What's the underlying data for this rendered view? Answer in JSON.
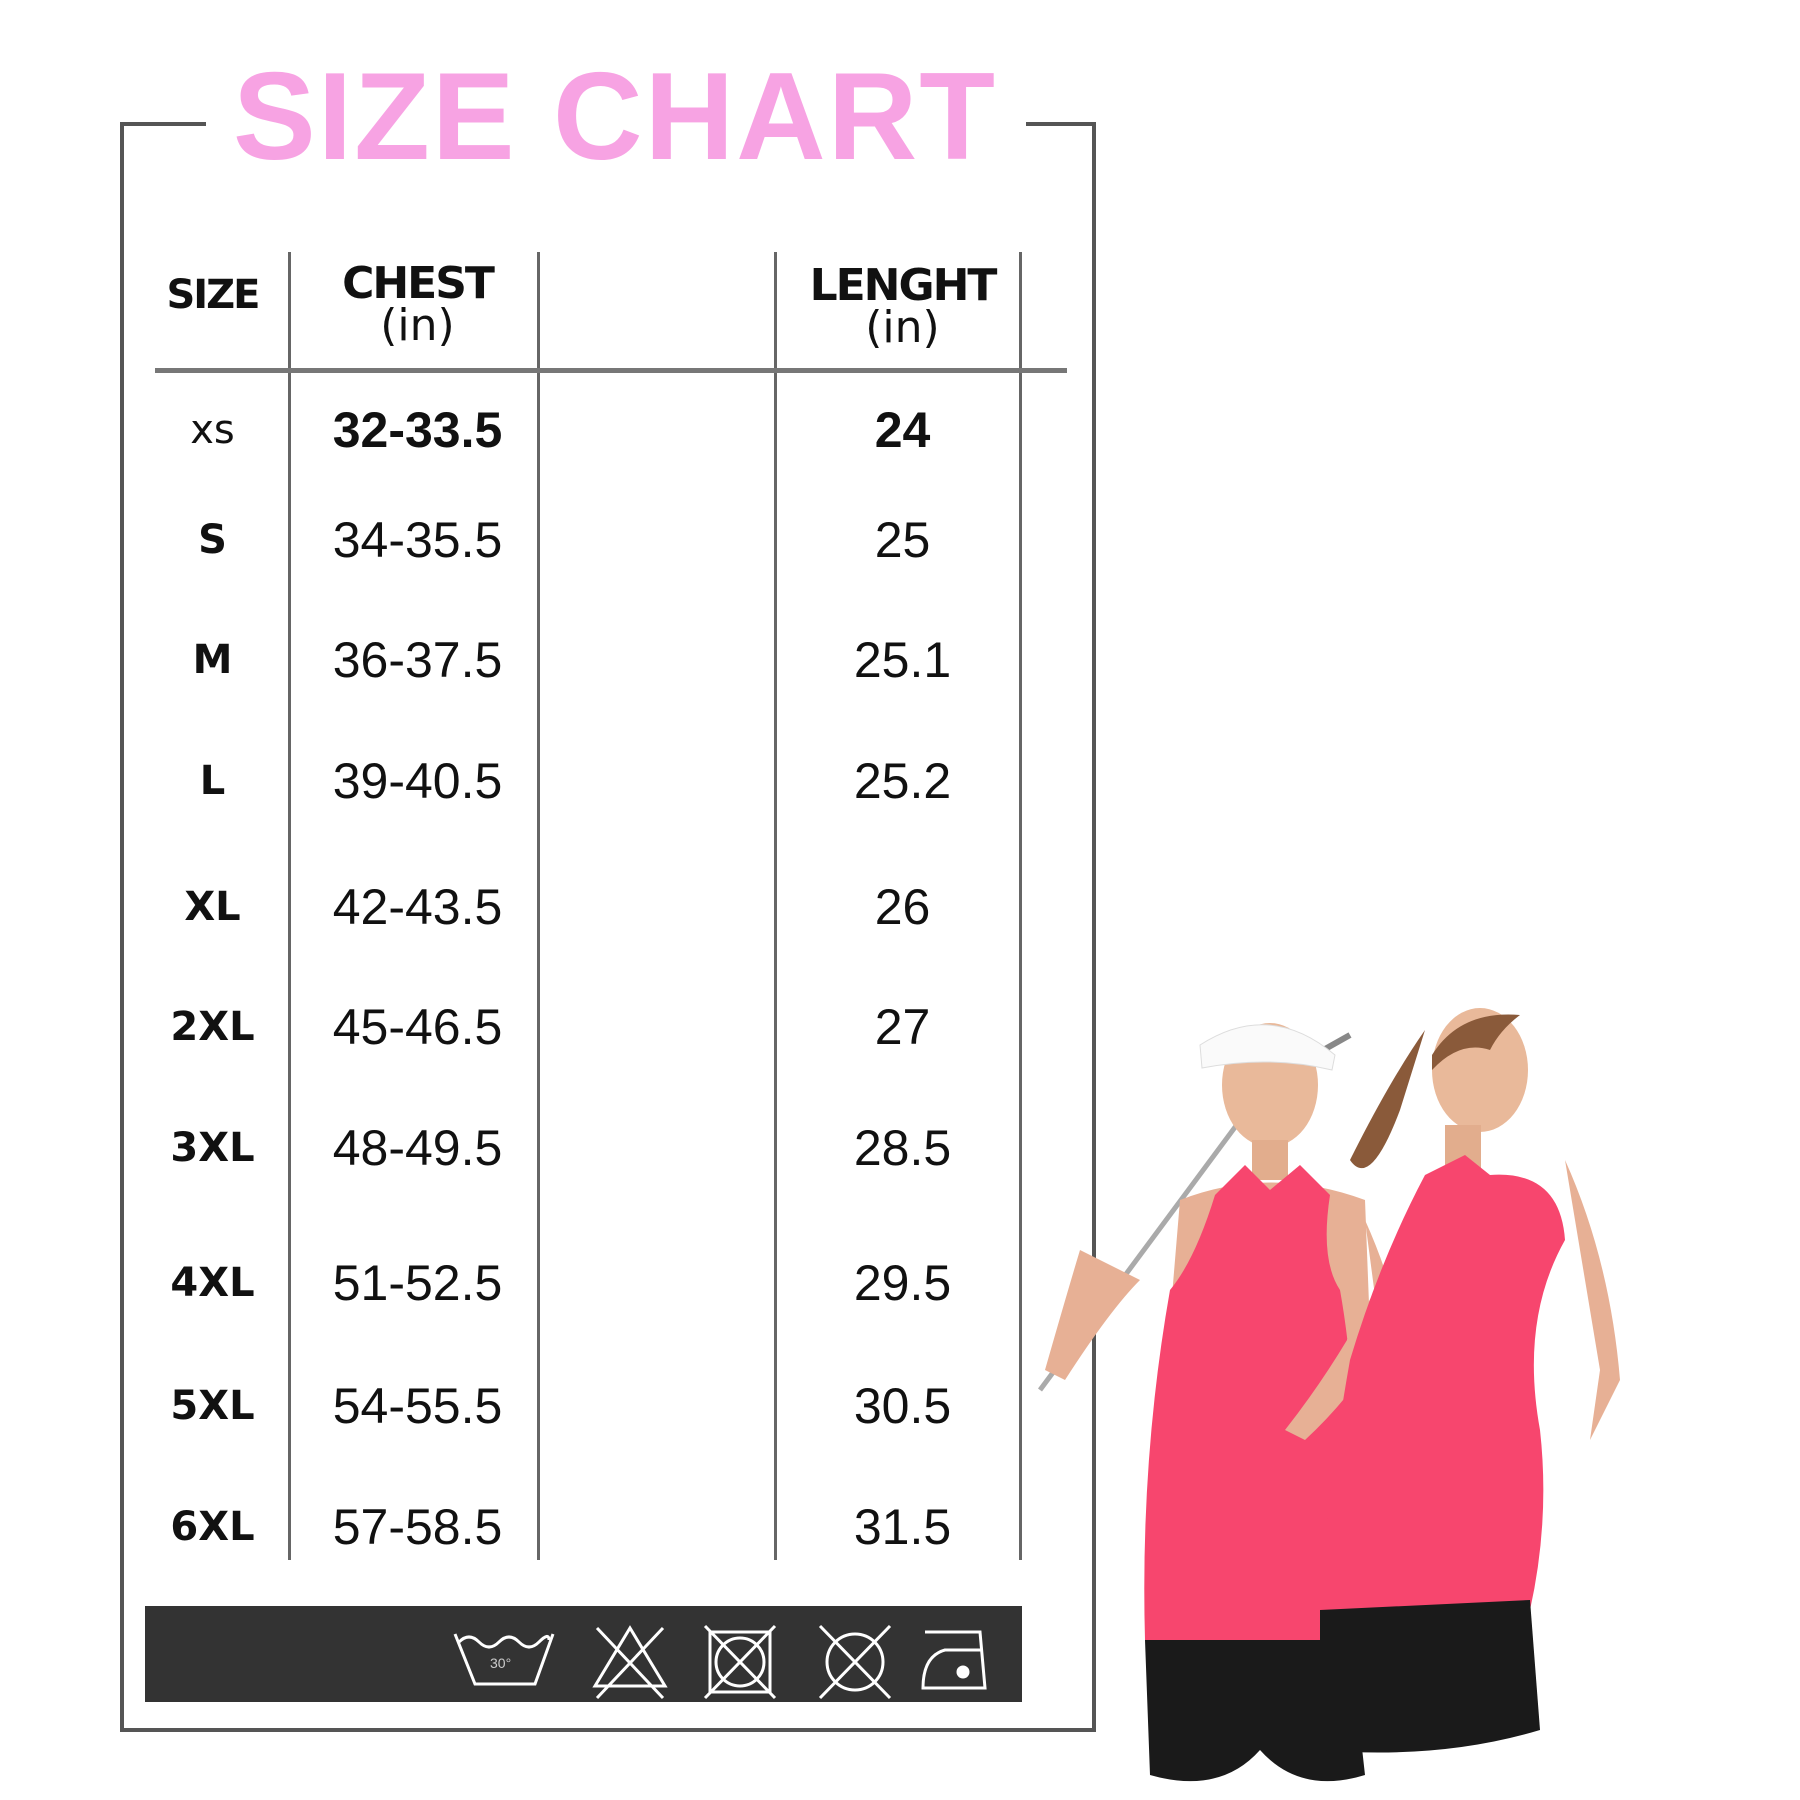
{
  "title": "SIZE CHART",
  "headers": {
    "size": "SIZE",
    "chest": "CHEST",
    "chest_unit": "(in)",
    "length": "LENGHT",
    "length_unit": "(in)"
  },
  "rows": [
    {
      "size": "XS",
      "chest": "32-33.5",
      "length": "24"
    },
    {
      "size": "S",
      "chest": "34-35.5",
      "length": "25"
    },
    {
      "size": "M",
      "chest": "36-37.5",
      "length": "25.1"
    },
    {
      "size": "L",
      "chest": "39-40.5",
      "length": "25.2"
    },
    {
      "size": "XL",
      "chest": "42-43.5",
      "length": "26"
    },
    {
      "size": "2XL",
      "chest": "45-46.5",
      "length": "27"
    },
    {
      "size": "3XL",
      "chest": "48-49.5",
      "length": "28.5"
    },
    {
      "size": "4XL",
      "chest": "51-52.5",
      "length": "29.5"
    },
    {
      "size": "5XL",
      "chest": "54-55.5",
      "length": "30.5"
    },
    {
      "size": "6XL",
      "chest": "57-58.5",
      "length": "31.5"
    }
  ],
  "care": {
    "wash_temp": "30°",
    "icons": [
      "wash-30-icon",
      "do-not-bleach-icon",
      "do-not-tumble-dry-icon",
      "do-not-dry-clean-icon",
      "iron-low-icon"
    ]
  },
  "colors": {
    "title": "#f7a3e3",
    "shirt": "#f7466e",
    "care_bar": "#333333"
  }
}
